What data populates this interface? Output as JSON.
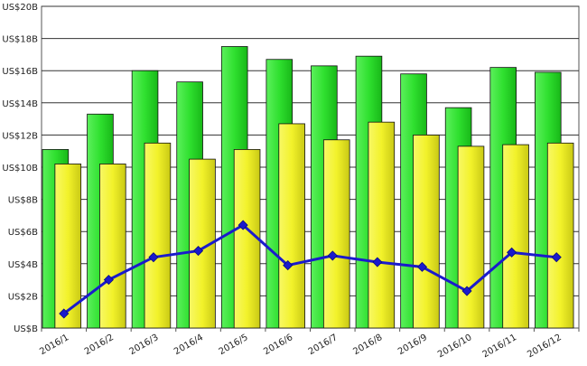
{
  "chart_data": {
    "type": "bar",
    "title": "",
    "xlabel": "",
    "ylabel": "",
    "ylim": [
      0,
      20
    ],
    "yticks": [
      {
        "value": 0,
        "label": "US$B"
      },
      {
        "value": 2,
        "label": "US$2B"
      },
      {
        "value": 4,
        "label": "US$4B"
      },
      {
        "value": 6,
        "label": "US$6B"
      },
      {
        "value": 8,
        "label": "US$8B"
      },
      {
        "value": 10,
        "label": "US$10B"
      },
      {
        "value": 12,
        "label": "US$12B"
      },
      {
        "value": 14,
        "label": "US$14B"
      },
      {
        "value": 16,
        "label": "US$16B"
      },
      {
        "value": 18,
        "label": "US$18B"
      },
      {
        "value": 20,
        "label": "US$20B"
      }
    ],
    "categories": [
      "2016/1",
      "2016/2",
      "2016/3",
      "2016/4",
      "2016/5",
      "2016/6",
      "2016/7",
      "2016/8",
      "2016/9",
      "2016/10",
      "2016/11",
      "2016/12"
    ],
    "grid": true,
    "legend": "none",
    "series": [
      {
        "kind": "bar",
        "color": "#2fe02f",
        "values": [
          11.1,
          13.3,
          16.0,
          15.3,
          17.5,
          16.7,
          16.3,
          16.9,
          15.8,
          13.7,
          16.2,
          15.9
        ]
      },
      {
        "kind": "bar",
        "color": "#f2f22a",
        "values": [
          10.2,
          10.2,
          11.5,
          10.5,
          11.1,
          12.7,
          11.7,
          12.8,
          12.0,
          11.3,
          11.4,
          11.5
        ]
      },
      {
        "kind": "line",
        "color": "#1a1acc",
        "values": [
          0.9,
          3.0,
          4.4,
          4.8,
          6.4,
          3.9,
          4.5,
          4.1,
          3.8,
          2.3,
          4.7,
          4.4
        ]
      }
    ]
  }
}
